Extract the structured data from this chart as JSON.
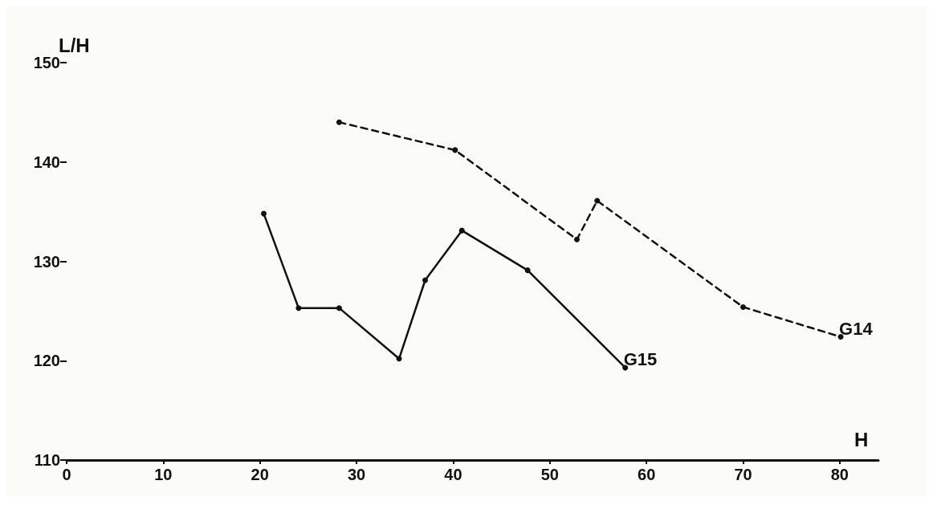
{
  "chart_data": {
    "type": "line",
    "xlabel": "H",
    "ylabel": "L/H",
    "xlim": [
      0,
      84
    ],
    "xticks": [
      0,
      10,
      20,
      30,
      40,
      50,
      60,
      70,
      80
    ],
    "ylim": [
      110,
      150
    ],
    "yticks": [
      110,
      120,
      130,
      140,
      150
    ],
    "grid": false,
    "legend": false,
    "marker": "circle",
    "series": [
      {
        "name": "G15",
        "color": "#111111",
        "line_style": "solid",
        "x": [
          20.4,
          24,
          28.2,
          34.4,
          37.1,
          40.9,
          47.7,
          57.8
        ],
        "values": [
          134.8,
          125.3,
          125.3,
          120.2,
          128.1,
          133.1,
          129.1,
          119.3
        ]
      },
      {
        "name": "G14",
        "color": "#111111",
        "line_style": "dashed",
        "x": [
          28.2,
          40.2,
          52.8,
          54.9,
          70,
          80.1
        ],
        "values": [
          144,
          141.2,
          132.2,
          136.1,
          125.4,
          122.4
        ]
      }
    ]
  }
}
